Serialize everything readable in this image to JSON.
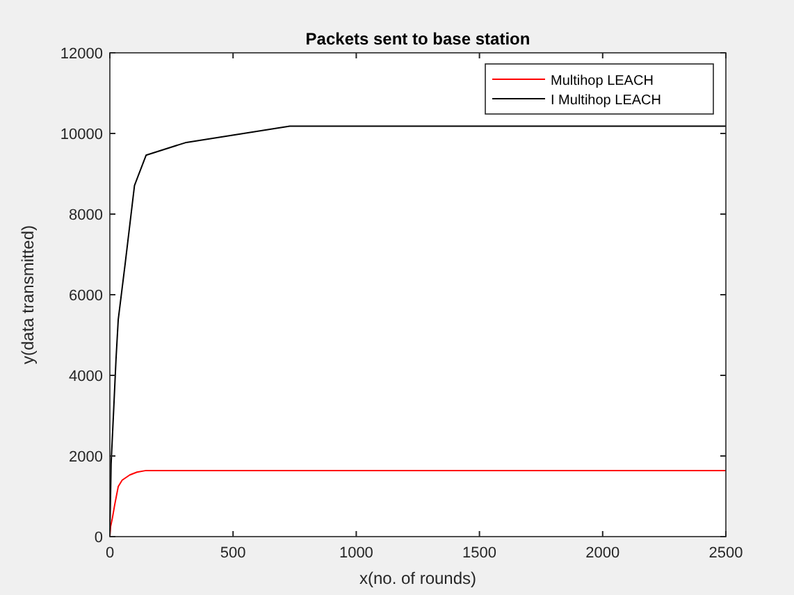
{
  "chart_data": {
    "type": "line",
    "title": "Packets sent to base station",
    "xlabel": "x(no. of rounds)",
    "ylabel": "y(data transmitted)",
    "xlim": [
      0,
      2500
    ],
    "xticks": [
      0,
      500,
      1000,
      1500,
      2000,
      2500
    ],
    "ylim": [
      0,
      12000
    ],
    "yticks": [
      0,
      2000,
      4000,
      6000,
      8000,
      10000,
      12000
    ],
    "legend": "top right",
    "grid": false,
    "series": [
      {
        "name": "Multihop LEACH",
        "color": "#ff0000",
        "x": [
          0,
          3,
          10,
          20,
          34,
          50,
          81,
          110,
          147,
          500,
          1000,
          1500,
          2000,
          2500
        ],
        "values": [
          0,
          250,
          450,
          800,
          1240,
          1400,
          1530,
          1600,
          1640,
          1640,
          1640,
          1640,
          1640,
          1640
        ]
      },
      {
        "name": "I Multihop LEACH",
        "color": "#000000",
        "x": [
          0,
          5,
          15,
          25,
          34,
          62,
          100,
          147,
          306,
          730,
          1000,
          1500,
          2000,
          2500
        ],
        "values": [
          0,
          1800,
          3080,
          4400,
          5380,
          6760,
          8710,
          9460,
          9770,
          10180,
          10180,
          10180,
          10180,
          10180
        ]
      }
    ]
  }
}
